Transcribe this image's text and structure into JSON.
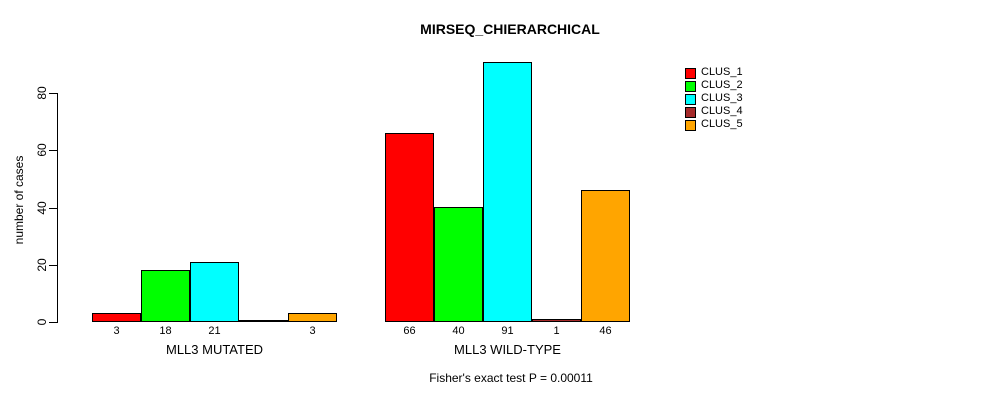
{
  "chart_data": {
    "type": "bar",
    "title": "MIRSEQ_CHIERARCHICAL",
    "ylabel": "number of cases",
    "xlabel": "",
    "annotation": "Fisher's exact test P = 0.00011",
    "ylim": [
      0,
      80
    ],
    "y_ticks": [
      0,
      20,
      40,
      60,
      80
    ],
    "grid": false,
    "legend_position": "right",
    "groups": [
      "MLL3 MUTATED",
      "MLL3 WILD-TYPE"
    ],
    "series": [
      {
        "name": "CLUS_1",
        "color": "#FF0000",
        "values": [
          3,
          66
        ]
      },
      {
        "name": "CLUS_2",
        "color": "#00FF00",
        "values": [
          18,
          40
        ]
      },
      {
        "name": "CLUS_3",
        "color": "#00FFFF",
        "values": [
          21,
          91
        ]
      },
      {
        "name": "CLUS_4",
        "color": "#A52A2A",
        "values": [
          0,
          1
        ]
      },
      {
        "name": "CLUS_5",
        "color": "#FFA500",
        "values": [
          3,
          46
        ]
      }
    ],
    "bar_label_rule": "value shown under each bar, omitted when value is 0"
  }
}
